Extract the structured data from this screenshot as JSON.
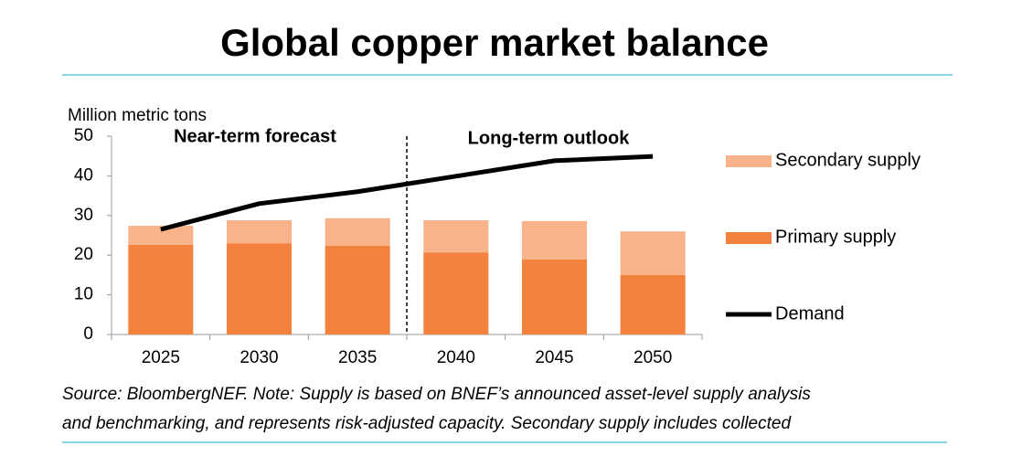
{
  "chart_data": {
    "type": "bar",
    "title": "Global copper market balance",
    "y_axis_label": "Million metric tons",
    "categories": [
      "2025",
      "2030",
      "2035",
      "2040",
      "2045",
      "2050"
    ],
    "stacked": true,
    "series": [
      {
        "name": "Primary supply",
        "color": "#f4823f",
        "type": "bar",
        "values": [
          22.6,
          23.0,
          22.4,
          20.7,
          18.9,
          15.0
        ]
      },
      {
        "name": "Secondary supply",
        "color": "#f8b38b",
        "type": "bar",
        "values": [
          4.8,
          5.8,
          6.9,
          8.1,
          9.7,
          11.0
        ]
      },
      {
        "name": "Demand",
        "color": "#000000",
        "type": "line",
        "values": [
          26.5,
          33.0,
          36.0,
          39.9,
          43.8,
          44.9
        ]
      }
    ],
    "ylim": [
      0,
      50
    ],
    "yticks": [
      0,
      10,
      20,
      30,
      40,
      50
    ],
    "annotations": [
      "Near-term forecast",
      "Long-term outlook"
    ],
    "footnote": [
      "Source: BloombergNEF. Note: Supply is based on BNEF’s announced asset-level supply analysis",
      "and benchmarking, and represents risk-adjusted capacity. Secondary supply includes collected"
    ]
  }
}
